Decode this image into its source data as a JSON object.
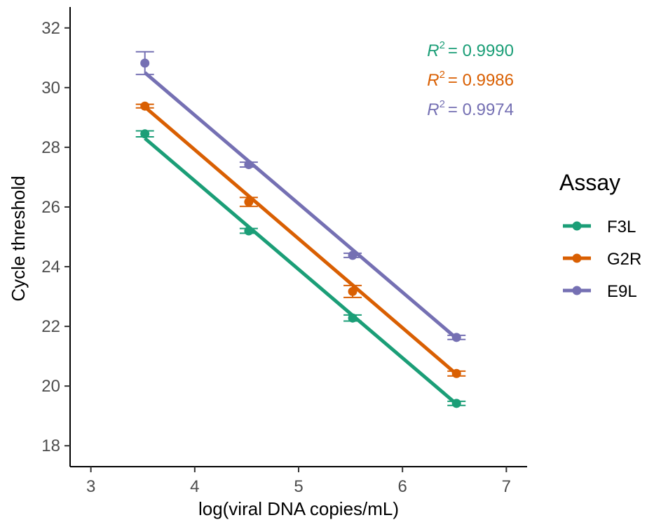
{
  "chart_data": {
    "type": "scatter",
    "title": "",
    "xlabel": "log(viral DNA copies/mL)",
    "ylabel": "Cycle threshold",
    "xlim": [
      2.8,
      7.2
    ],
    "ylim": [
      17.3,
      32.7
    ],
    "xticks": [
      3,
      4,
      5,
      6,
      7
    ],
    "yticks": [
      18,
      20,
      22,
      24,
      26,
      28,
      30,
      32
    ],
    "grid": false,
    "legend": {
      "title": "Assay",
      "position": "right"
    },
    "series": [
      {
        "name": "F3L",
        "color": "#1b9e77",
        "x": [
          3.52,
          4.52,
          5.52,
          6.52
        ],
        "y": [
          28.45,
          25.2,
          22.28,
          19.42
        ],
        "err": [
          0.1,
          0.08,
          0.1,
          0.07
        ],
        "fit": {
          "x": [
            3.52,
            6.52
          ],
          "y": [
            28.3,
            19.4
          ]
        },
        "r2_label": "= 0.9990"
      },
      {
        "name": "G2R",
        "color": "#d95f02",
        "x": [
          3.52,
          4.52,
          5.52,
          6.52
        ],
        "y": [
          29.38,
          26.17,
          23.17,
          20.42
        ],
        "err": [
          0.06,
          0.15,
          0.2,
          0.08
        ],
        "fit": {
          "x": [
            3.52,
            6.52
          ],
          "y": [
            29.35,
            20.4
          ]
        },
        "r2_label": "= 0.9986"
      },
      {
        "name": "E9L",
        "color": "#7570b3",
        "x": [
          3.52,
          4.52,
          5.52,
          6.52
        ],
        "y": [
          30.82,
          27.42,
          24.38,
          21.63
        ],
        "err": [
          0.38,
          0.08,
          0.07,
          0.07
        ],
        "fit": {
          "x": [
            3.52,
            6.52
          ],
          "y": [
            30.5,
            21.6
          ]
        },
        "r2_label": "= 0.9974"
      }
    ],
    "annotations": {
      "r2_prefix": "R",
      "r2_exponent": "2",
      "position": "top-right"
    }
  }
}
